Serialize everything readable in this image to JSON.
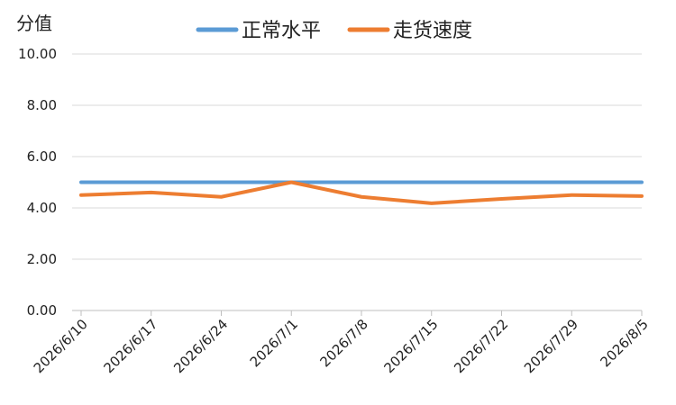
{
  "chart_data": {
    "type": "line",
    "ylabel": "分值",
    "xlabel": "",
    "ylim": [
      0,
      10
    ],
    "y_ticks": [
      "0.00",
      "2.00",
      "4.00",
      "6.00",
      "8.00",
      "10.00"
    ],
    "categories": [
      "2026/6/10",
      "2026/6/17",
      "2026/6/24",
      "2026/7/1",
      "2026/7/8",
      "2026/7/15",
      "2026/7/22",
      "2026/7/29",
      "2026/8/5"
    ],
    "grid": true,
    "legend_position": "top",
    "series": [
      {
        "name": "正常水平",
        "color": "#5B9BD5",
        "values": [
          5,
          5,
          5,
          5,
          5,
          5,
          5,
          5,
          5
        ]
      },
      {
        "name": "走货速度",
        "color": "#ED7D31",
        "values": [
          4.5,
          4.6,
          4.43,
          5.0,
          4.43,
          4.18,
          4.35,
          4.5,
          4.46
        ]
      }
    ]
  }
}
